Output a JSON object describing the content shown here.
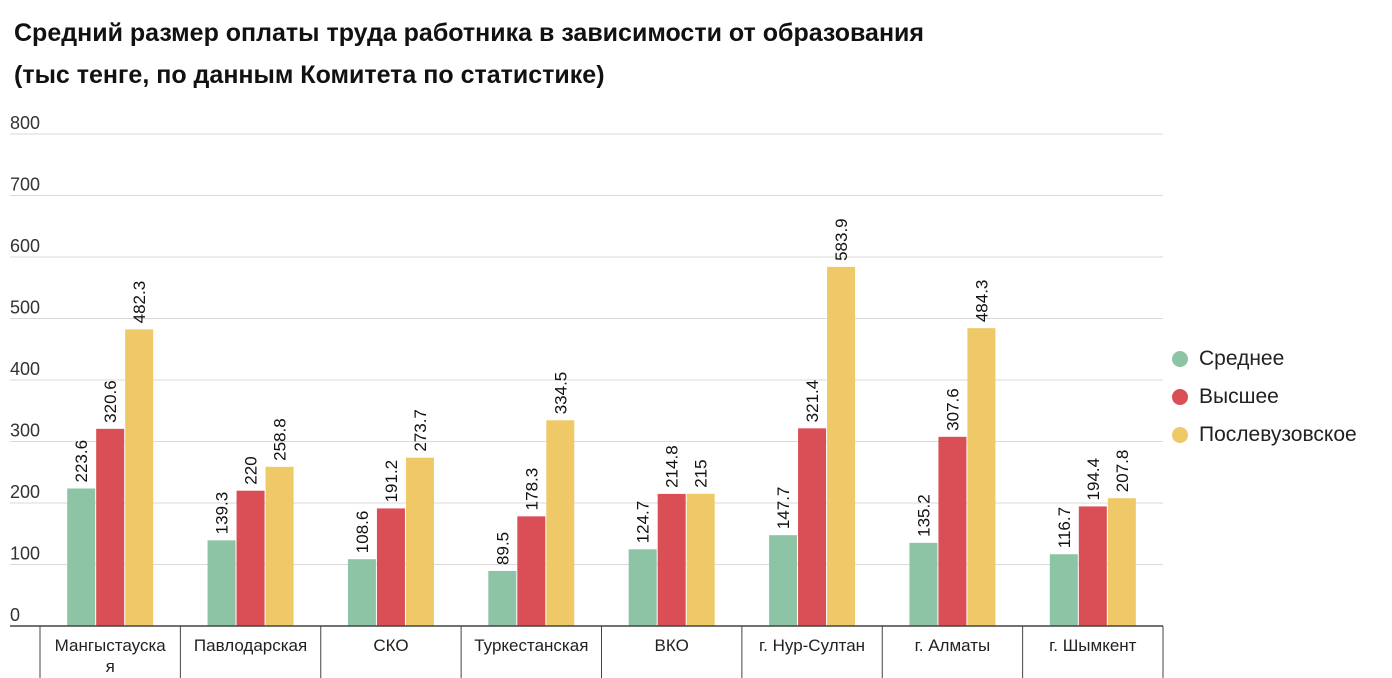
{
  "title_line1": "Средний размер оплаты труда работника в зависимости от образования",
  "title_line2": "(тыс тенге, по данным Комитета по статистике)",
  "chart_data": {
    "type": "bar",
    "title": "Средний размер оплаты труда работника в зависимости от образования (тыс тенге, по данным Комитета по статистике)",
    "xlabel": "",
    "ylabel": "",
    "ylim": [
      0,
      800
    ],
    "yticks": [
      0,
      100,
      200,
      300,
      400,
      500,
      600,
      700,
      800
    ],
    "grid": true,
    "legend_position": "right",
    "categories": [
      [
        "Мангыстауска",
        "я"
      ],
      [
        "Павлодарская"
      ],
      [
        "СКО"
      ],
      [
        "Туркестанская"
      ],
      [
        "ВКО"
      ],
      [
        "г. Нур-Султан"
      ],
      [
        "г. Алматы"
      ],
      [
        "г. Шымкент"
      ]
    ],
    "series": [
      {
        "name": "Среднее",
        "color": "#8dc4a6",
        "values": [
          223.6,
          139.3,
          108.6,
          89.5,
          124.7,
          147.7,
          135.2,
          116.7
        ]
      },
      {
        "name": "Высшее",
        "color": "#d94f55",
        "values": [
          320.6,
          220,
          191.2,
          178.3,
          214.8,
          321.4,
          307.6,
          194.4
        ]
      },
      {
        "name": "Послевузовское",
        "color": "#efc968",
        "values": [
          482.3,
          258.8,
          273.7,
          334.5,
          215,
          583.9,
          484.3,
          207.8
        ]
      }
    ]
  }
}
